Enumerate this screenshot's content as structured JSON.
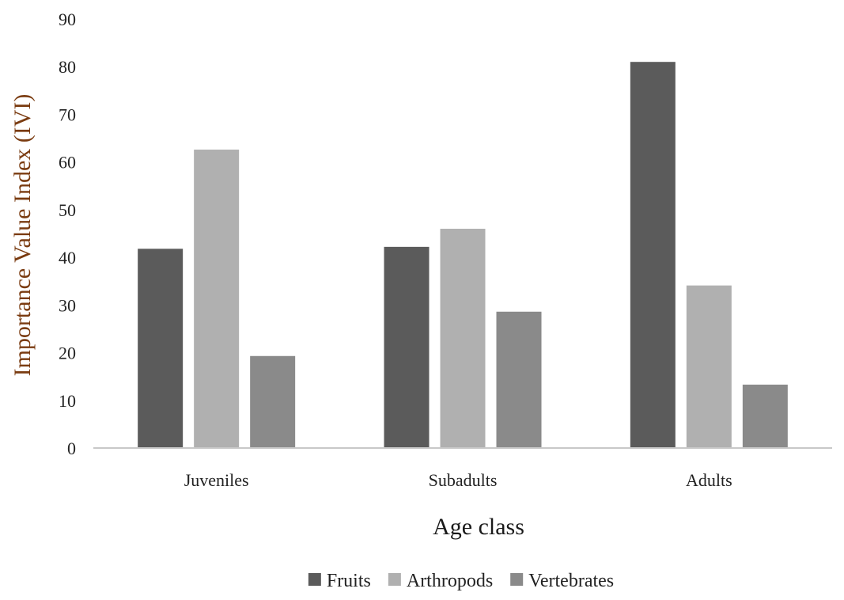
{
  "chart_data": {
    "type": "bar",
    "categories": [
      "Juveniles",
      "Subadults",
      "Adults"
    ],
    "series": [
      {
        "name": "Fruits",
        "values": [
          41.8,
          42.2,
          81.0
        ],
        "color": "#5b5b5b"
      },
      {
        "name": "Arthropods",
        "values": [
          62.6,
          46.0,
          34.1
        ],
        "color": "#b0b0b0"
      },
      {
        "name": "Vertebrates",
        "values": [
          19.3,
          28.6,
          13.3
        ],
        "color": "#8a8a8a"
      }
    ],
    "yticks": [
      "0",
      "10",
      "20",
      "30",
      "40",
      "50",
      "60",
      "70",
      "80",
      "90"
    ],
    "ylim": [
      0,
      90
    ],
    "xlabel": "Age class",
    "ylabel": "Importance Value Index (IVI)",
    "ylabel_color": "#7a3b10",
    "grid": false,
    "legend": "bottom"
  }
}
